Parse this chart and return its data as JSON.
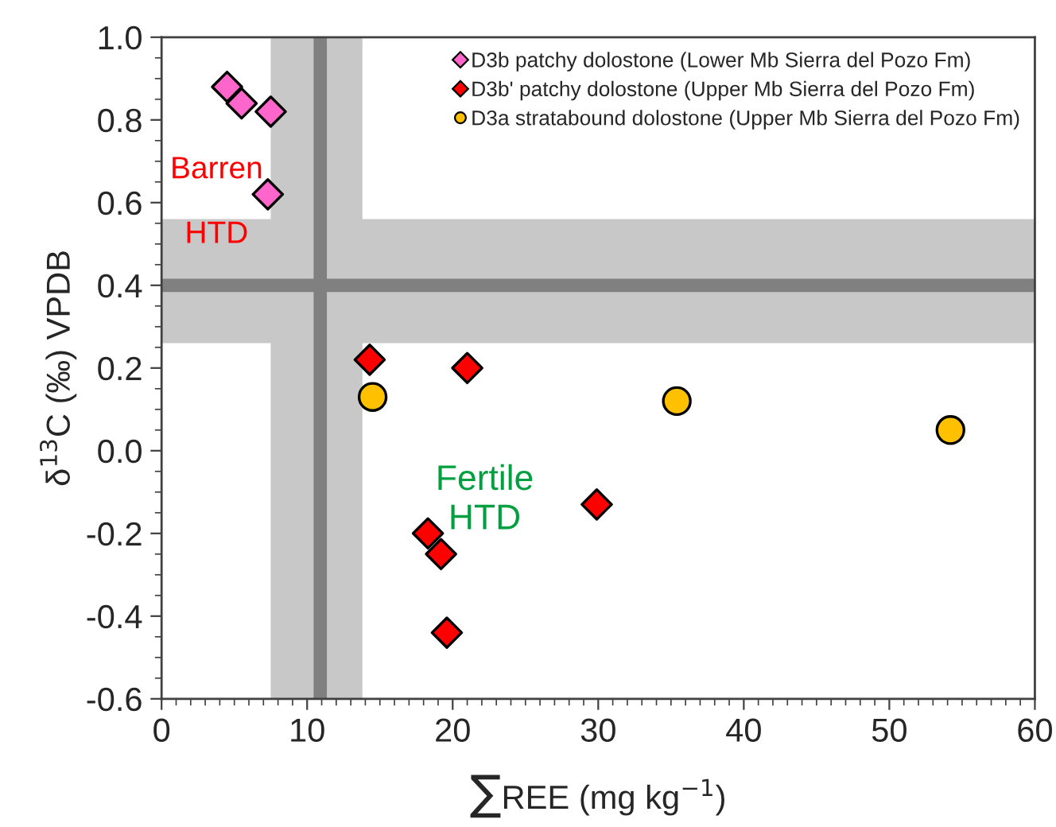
{
  "chart_data": {
    "type": "scatter",
    "xlabel": "∑REE (mg kg$^{−1}$)",
    "ylabel": "δ$^{13}$C (‰) VPDB",
    "xlim": [
      0,
      60
    ],
    "xticks": [
      0,
      10,
      20,
      30,
      40,
      50,
      60
    ],
    "ylim": [
      -0.6,
      1.0
    ],
    "yticks": [
      {
        "value": -0.6,
        "label": "-0.6"
      },
      {
        "value": -0.4,
        "label": "-0.4"
      },
      {
        "value": -0.2,
        "label": "-0.2"
      },
      {
        "value": 0.0,
        "label": "0.0"
      },
      {
        "value": 0.2,
        "label": "0.2"
      },
      {
        "value": 0.4,
        "label": "0.4"
      },
      {
        "value": 0.6,
        "label": "0.6"
      },
      {
        "value": 0.8,
        "label": "0.8"
      },
      {
        "value": 1.0,
        "label": "1.0"
      }
    ],
    "grid": false,
    "legend": "top right",
    "series": [
      {
        "name": "D3b patchy dolostone (Lower Mb Sierra del Pozo Fm)",
        "color": "#ff66cc",
        "marker": "diamond",
        "x": [
          4.5,
          5.5,
          7.5,
          7.3
        ],
        "values": [
          0.88,
          0.84,
          0.82,
          0.62
        ]
      },
      {
        "name": "D3b' patchy dolostone (Upper Mb Sierra del Pozo Fm)",
        "color": "#ff0000",
        "marker": "diamond",
        "x": [
          14.3,
          21.0,
          18.3,
          19.2,
          19.6,
          29.9
        ],
        "values": [
          0.22,
          0.2,
          -0.2,
          -0.25,
          -0.44,
          -0.13
        ]
      },
      {
        "name": "D3a stratabound dolostone (Upper Mb Sierra del Pozo Fm)",
        "color": "#ffc000",
        "marker": "circle",
        "x": [
          14.5,
          35.4,
          54.2
        ],
        "values": [
          0.13,
          0.12,
          0.05
        ]
      }
    ],
    "ref_lines": [
      {
        "axis": "x",
        "value": 10.9,
        "color": "#808080"
      },
      {
        "axis": "y",
        "value": 0.4,
        "color": "#808080"
      }
    ],
    "bands": [
      {
        "axis": "x",
        "from": 7.5,
        "to": 13.8,
        "color": "#c8c8c8"
      },
      {
        "axis": "y",
        "from": 0.26,
        "to": 0.56,
        "color": "#c8c8c8"
      }
    ],
    "annotations": [
      "Barren\nHTD",
      "Fertile\nHTD"
    ]
  }
}
